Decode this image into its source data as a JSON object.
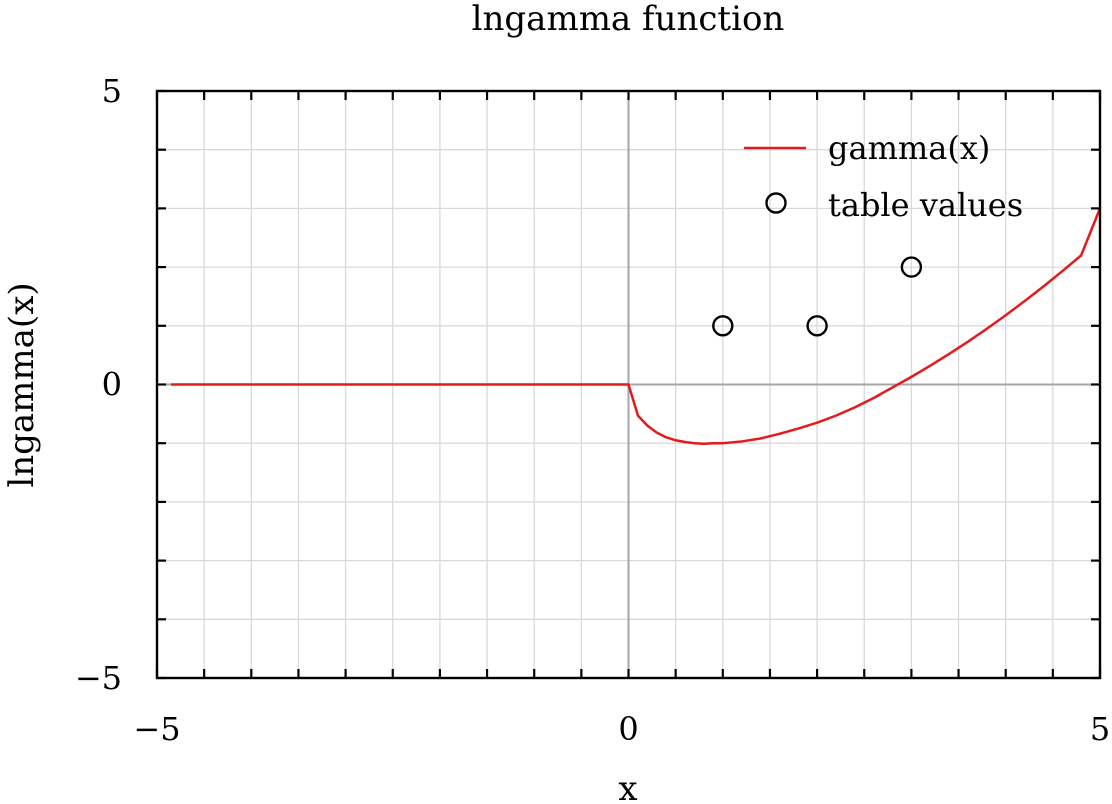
{
  "chart_data": {
    "type": "line",
    "title": "lngamma function",
    "xlabel": "x",
    "ylabel": "lngamma(x)",
    "xlim": [
      -5,
      5
    ],
    "ylim": [
      -5,
      5
    ],
    "x_ticks": [
      -5,
      0,
      5
    ],
    "y_ticks": [
      -5,
      0,
      5
    ],
    "x_tick_labels": [
      "−5",
      "0",
      "5"
    ],
    "y_tick_labels": [
      "−5",
      "0",
      "5"
    ],
    "grid": true,
    "legend_position": "top-right",
    "series": [
      {
        "name": "gamma(x)",
        "kind": "line",
        "color": "#e41a1c",
        "points": [
          [
            -4.85,
            0
          ],
          [
            0,
            0
          ],
          [
            0.1,
            -0.53
          ],
          [
            0.2,
            -0.7
          ],
          [
            0.3,
            -0.82
          ],
          [
            0.4,
            -0.9
          ],
          [
            0.5,
            -0.95
          ],
          [
            0.6,
            -0.98
          ],
          [
            0.7,
            -1.0
          ],
          [
            0.8,
            -1.01
          ],
          [
            0.9,
            -1.0
          ],
          [
            1.0,
            -1.0
          ],
          [
            1.2,
            -0.97
          ],
          [
            1.4,
            -0.92
          ],
          [
            1.6,
            -0.84
          ],
          [
            1.8,
            -0.75
          ],
          [
            2.0,
            -0.65
          ],
          [
            2.2,
            -0.53
          ],
          [
            2.4,
            -0.39
          ],
          [
            2.6,
            -0.23
          ],
          [
            2.8,
            -0.05
          ],
          [
            3.0,
            0.13
          ],
          [
            3.2,
            0.32
          ],
          [
            3.4,
            0.52
          ],
          [
            3.6,
            0.73
          ],
          [
            3.8,
            0.95
          ],
          [
            4.0,
            1.18
          ],
          [
            4.2,
            1.42
          ],
          [
            4.4,
            1.67
          ],
          [
            4.6,
            1.93
          ],
          [
            4.8,
            2.2
          ],
          [
            5.0,
            3.0
          ]
        ]
      },
      {
        "name": "table values",
        "kind": "scatter",
        "marker": "open-circle",
        "color": "#000000",
        "points": [
          [
            1,
            1
          ],
          [
            2,
            1
          ],
          [
            3,
            2
          ]
        ]
      }
    ]
  }
}
